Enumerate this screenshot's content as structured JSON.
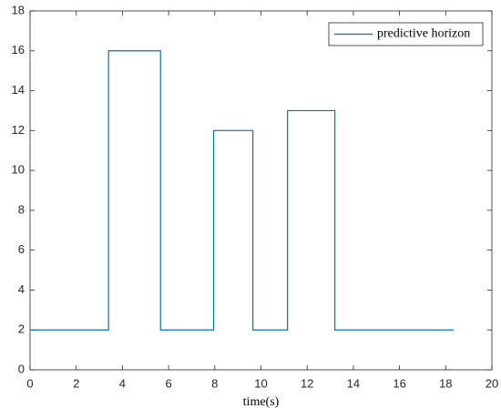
{
  "chart_data": {
    "type": "line",
    "x_label": "time(s)",
    "x": [
      0,
      3.4,
      3.4,
      5.65,
      5.65,
      7.95,
      7.95,
      9.65,
      9.65,
      11.15,
      11.15,
      13.2,
      13.2,
      18.35
    ],
    "series": [
      {
        "name": "predictive horizon",
        "color": "#0072bd",
        "values": [
          2,
          2,
          16,
          16,
          2,
          2,
          12,
          12,
          2,
          2,
          13,
          13,
          2,
          2
        ]
      }
    ],
    "xlim": [
      0,
      20
    ],
    "xticks": [
      0,
      2,
      4,
      6,
      8,
      10,
      12,
      14,
      16,
      18,
      20
    ],
    "ylim": [
      0,
      18
    ],
    "yticks": [
      0,
      2,
      4,
      6,
      8,
      10,
      12,
      14,
      16,
      18
    ],
    "grid": false,
    "legend_position": "upper right"
  }
}
